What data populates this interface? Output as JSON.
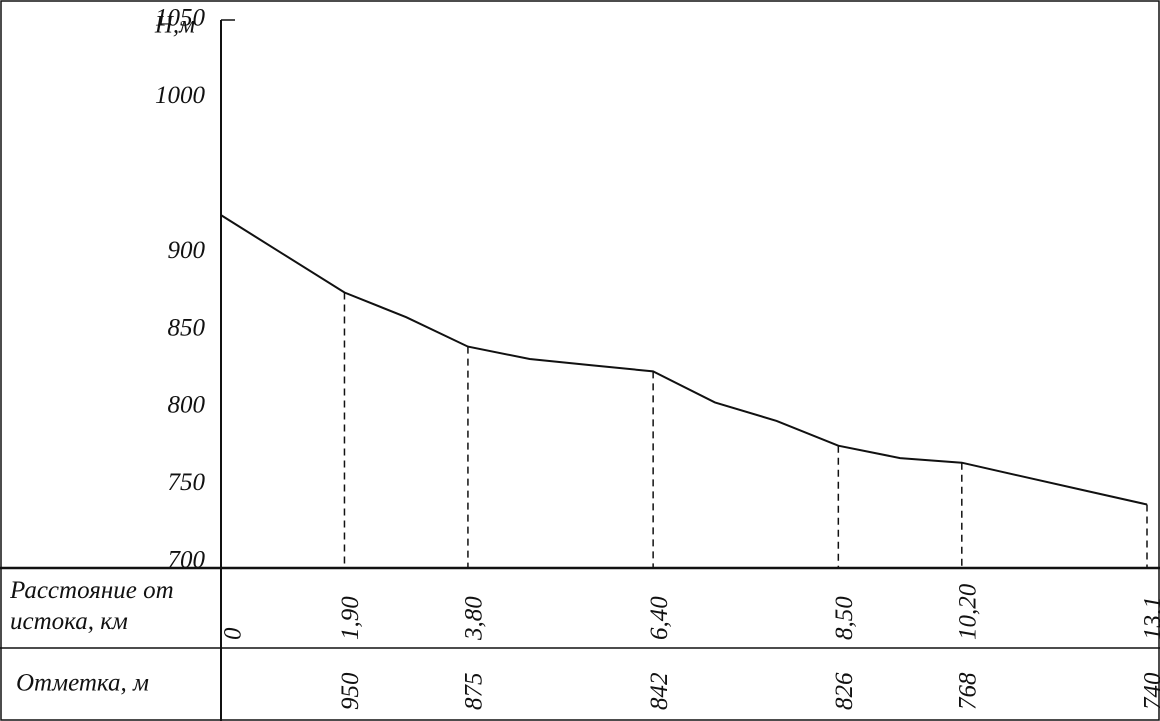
{
  "chart_data": {
    "type": "line",
    "y_label": "Н,м",
    "x_row_label": "Расстояние от истока, км",
    "elevation_row_label": "Отметка, м",
    "categories": [
      "0",
      null,
      "1,90",
      null,
      "3,80",
      null,
      null,
      "6,40",
      null,
      null,
      "8,50",
      null,
      "10,20",
      null,
      null,
      "13,1"
    ],
    "elevation_marks": [
      null,
      null,
      "950",
      null,
      "875",
      null,
      null,
      "842",
      null,
      null,
      "826",
      null,
      "768",
      null,
      null,
      "740"
    ],
    "values": [
      924,
      899,
      874,
      858,
      839,
      831,
      827,
      823,
      803,
      791,
      775,
      767,
      764,
      755,
      746,
      737
    ],
    "color": "#111111",
    "ylim": [
      696,
      1050
    ],
    "yticks": [
      700,
      750,
      800,
      850,
      900,
      1000,
      1050
    ]
  }
}
